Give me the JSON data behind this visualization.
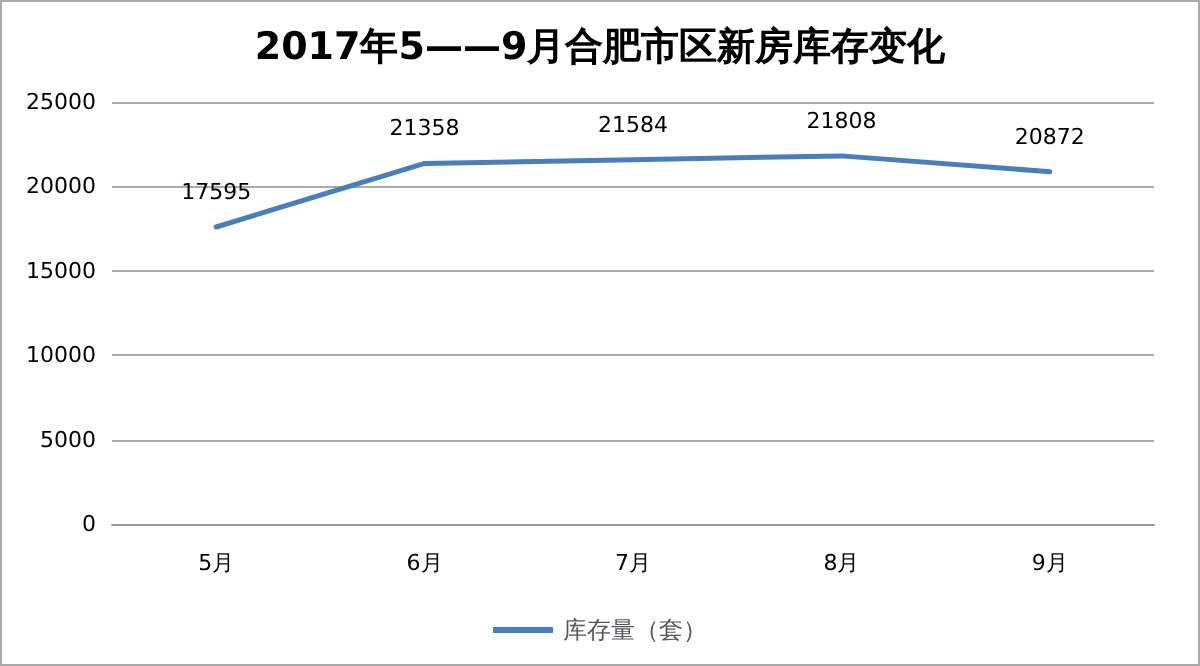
{
  "chart_data": {
    "type": "line",
    "title": "2017年5——9月合肥市区新房库存变化",
    "categories": [
      "5月",
      "6月",
      "7月",
      "8月",
      "9月"
    ],
    "series": [
      {
        "name": "库存量（套）",
        "color": "#4a7ebb",
        "values": [
          17595,
          21358,
          21584,
          21808,
          20872
        ]
      }
    ],
    "ylim": [
      0,
      25000
    ],
    "yticks": [
      0,
      5000,
      10000,
      15000,
      20000,
      25000
    ],
    "grid": "y",
    "legend": "bottom",
    "data_labels": true,
    "marker": "none",
    "line_style": "solid"
  }
}
